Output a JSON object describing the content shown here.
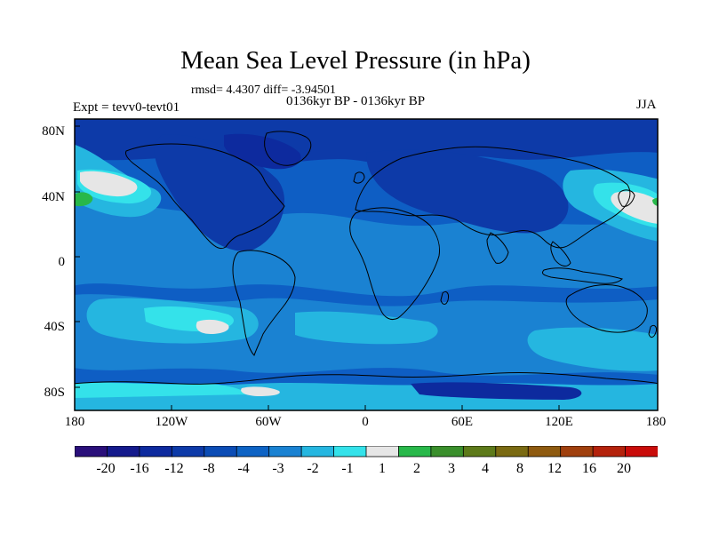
{
  "title": "Mean Sea Level Pressure (in hPa)",
  "stats": "rmsd= 4.4307 diff= -3.94501",
  "period": "0136kyr BP - 0136kyr BP",
  "experiment": "Expt = tevv0-tevt01",
  "season": "JJA",
  "lat_labels": [
    "80N",
    "40N",
    "0",
    "40S",
    "80S"
  ],
  "lon_labels": [
    "180",
    "120W",
    "60W",
    "0",
    "60E",
    "120E",
    "180"
  ],
  "colorbar": {
    "labels": [
      "-20",
      "-16",
      "-12",
      "-8",
      "-4",
      "-3",
      "-2",
      "-1",
      "1",
      "2",
      "3",
      "4",
      "8",
      "12",
      "16",
      "20"
    ],
    "colors": [
      "#2a0f7a",
      "#141a8c",
      "#0d2a9e",
      "#0d3aa8",
      "#0b4cb5",
      "#0e63c4",
      "#1a82d2",
      "#25b6e0",
      "#34e2ea",
      "#e6e6e6",
      "#28b84a",
      "#3a8f2c",
      "#5d7a1a",
      "#7a6a12",
      "#8e5a10",
      "#a0400e",
      "#b4220c",
      "#c90c0a"
    ]
  },
  "map_colors": {
    "ocean_base": "#0e5ec4",
    "light_blue": "#1a82d2",
    "cyan": "#25b6e0",
    "aqua": "#34e2ea",
    "near_zero": "#e6e6e6",
    "dark_blue": "#0d3aa8",
    "navy": "#0d2a9e",
    "green": "#28b84a",
    "coast": "#000000"
  }
}
